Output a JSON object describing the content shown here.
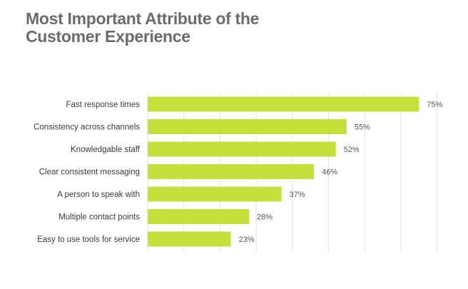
{
  "title": {
    "line1": "Most Important Attribute of the",
    "line2": "Customer Experience"
  },
  "colors": {
    "bar": "#c5e03a",
    "grid": "#e3e3e3",
    "title": "#6b6b6b"
  },
  "chart_data": {
    "type": "bar",
    "orientation": "horizontal",
    "title": "Most Important Attribute of the Customer Experience",
    "categories": [
      "Fast response times",
      "Consistency across channels",
      "Knowledgable staff",
      "Clear consistent messaging",
      "A person to speak with",
      "Multiple contact points",
      "Easy to use tools for service"
    ],
    "values": [
      75,
      55,
      52,
      46,
      37,
      28,
      23
    ],
    "value_labels": [
      "75%",
      "55%",
      "52%",
      "46%",
      "37%",
      "28%",
      "23%"
    ],
    "xlim": [
      0,
      80
    ],
    "grid": true,
    "legend": "none"
  }
}
